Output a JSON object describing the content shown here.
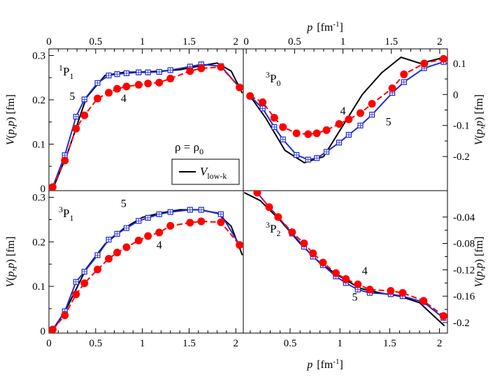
{
  "chart_data": [
    {
      "type": "line",
      "panel": "top-left",
      "label_main": "P",
      "label_sup": "1",
      "label_sub": "1",
      "xlabel": "p  [fm-1]",
      "ylabel": "V(p,p)  [fm]",
      "xlim": [
        0,
        2.08
      ],
      "ylim": [
        -0.005,
        0.315
      ],
      "yticks": [
        0,
        0.1,
        0.2,
        0.3
      ],
      "ytick_labels": [
        "0",
        "0.1",
        "0.2",
        "0.3"
      ],
      "series": [
        {
          "name": "V_low-k",
          "style": "solid-black",
          "x": [
            0.05,
            0.2,
            0.4,
            0.6,
            0.8,
            1.0,
            1.2,
            1.4,
            1.6,
            1.8,
            1.95,
            2.07
          ],
          "y": [
            0.003,
            0.08,
            0.205,
            0.255,
            0.262,
            0.263,
            0.265,
            0.268,
            0.276,
            0.283,
            0.265,
            0.215
          ]
        },
        {
          "name": "5",
          "style": "blue-square",
          "x": [
            0.04,
            0.17,
            0.29,
            0.38,
            0.52,
            0.64,
            0.73,
            0.83,
            0.96,
            1.06,
            1.18,
            1.3,
            1.51,
            1.63,
            1.84,
            2.04
          ],
          "y": [
            0.003,
            0.075,
            0.162,
            0.201,
            0.238,
            0.255,
            0.258,
            0.26,
            0.262,
            0.262,
            0.263,
            0.267,
            0.275,
            0.28,
            0.276,
            0.228
          ]
        },
        {
          "name": "4",
          "style": "red-circle",
          "x": [
            0.04,
            0.17,
            0.29,
            0.38,
            0.52,
            0.64,
            0.73,
            0.83,
            0.96,
            1.06,
            1.18,
            1.3,
            1.51,
            1.63,
            1.84,
            2.04
          ],
          "y": [
            0.003,
            0.063,
            0.135,
            0.165,
            0.203,
            0.216,
            0.225,
            0.23,
            0.234,
            0.237,
            0.239,
            0.248,
            0.265,
            0.271,
            0.274,
            0.228
          ]
        }
      ],
      "curve_labels": [
        {
          "text": "5",
          "x": 0.25,
          "y": 0.2
        },
        {
          "text": "4",
          "x": 0.8,
          "y": 0.195
        }
      ],
      "annotation": "ρ = ρ0",
      "legend_label": "Vlow-k"
    },
    {
      "type": "line",
      "panel": "top-right",
      "label_main": "P",
      "label_sup": "3",
      "label_sub": "0",
      "xlabel": "p  [fm-1]",
      "ylabel": "V(p,p)  [fm]",
      "xlim": [
        -0.03,
        2.08
      ],
      "ylim": [
        -0.31,
        0.147
      ],
      "yticks": [
        -0.2,
        -0.1,
        0,
        0.1
      ],
      "ytick_labels": [
        "-0.2",
        "-0.1",
        "0",
        "0.1"
      ],
      "series": [
        {
          "name": "V_low-k",
          "style": "solid-black",
          "x": [
            0.04,
            0.2,
            0.4,
            0.6,
            0.8,
            1.0,
            1.2,
            1.4,
            1.6,
            1.8,
            2.05
          ],
          "y": [
            -0.005,
            -0.075,
            -0.18,
            -0.22,
            -0.2,
            -0.1,
            0.0,
            0.07,
            0.12,
            0.1,
            0.12
          ]
        },
        {
          "name": "5",
          "style": "blue-square",
          "x": [
            0.04,
            0.17,
            0.29,
            0.38,
            0.52,
            0.64,
            0.73,
            0.83,
            0.96,
            1.06,
            1.18,
            1.3,
            1.51,
            1.63,
            1.84,
            2.04
          ],
          "y": [
            -0.005,
            -0.045,
            -0.105,
            -0.145,
            -0.195,
            -0.21,
            -0.205,
            -0.185,
            -0.155,
            -0.13,
            -0.1,
            -0.065,
            0.005,
            0.04,
            0.085,
            0.105
          ]
        },
        {
          "name": "4",
          "style": "red-circle",
          "x": [
            0.04,
            0.17,
            0.29,
            0.38,
            0.52,
            0.64,
            0.73,
            0.83,
            0.96,
            1.06,
            1.18,
            1.3,
            1.51,
            1.63,
            1.84,
            2.04
          ],
          "y": [
            -0.005,
            -0.025,
            -0.075,
            -0.105,
            -0.125,
            -0.128,
            -0.125,
            -0.115,
            -0.095,
            -0.08,
            -0.06,
            -0.03,
            0.02,
            0.065,
            0.1,
            0.115
          ]
        }
      ],
      "curve_labels": [
        {
          "text": "4",
          "x": 1.0,
          "y": -0.065
        },
        {
          "text": "5",
          "x": 1.47,
          "y": -0.1
        }
      ]
    },
    {
      "type": "line",
      "panel": "bottom-left",
      "label_main": "P",
      "label_sup": "3",
      "label_sub": "1",
      "xlabel": "p  [fm-1]",
      "ylabel": "V(p,p)  [fm]",
      "xlim": [
        0,
        2.08
      ],
      "ylim": [
        -0.005,
        0.315
      ],
      "yticks": [
        0,
        0.1,
        0.2,
        0.3
      ],
      "ytick_labels": [
        "0",
        "0.1",
        "0.2",
        "0.3"
      ],
      "series": [
        {
          "name": "V_low-k",
          "style": "solid-black",
          "x": [
            0.05,
            0.2,
            0.4,
            0.6,
            0.8,
            1.0,
            1.2,
            1.4,
            1.6,
            1.8,
            1.95,
            2.07
          ],
          "y": [
            0.003,
            0.055,
            0.14,
            0.195,
            0.23,
            0.255,
            0.265,
            0.272,
            0.272,
            0.265,
            0.235,
            0.17
          ]
        },
        {
          "name": "5",
          "style": "blue-square",
          "x": [
            0.04,
            0.17,
            0.29,
            0.38,
            0.52,
            0.64,
            0.73,
            0.83,
            0.96,
            1.06,
            1.18,
            1.3,
            1.51,
            1.63,
            1.84,
            2.04
          ],
          "y": [
            0.003,
            0.044,
            0.11,
            0.133,
            0.17,
            0.205,
            0.218,
            0.231,
            0.247,
            0.254,
            0.262,
            0.267,
            0.272,
            0.272,
            0.262,
            0.193
          ]
        },
        {
          "name": "4",
          "style": "red-circle",
          "x": [
            0.04,
            0.17,
            0.29,
            0.38,
            0.52,
            0.64,
            0.73,
            0.83,
            0.96,
            1.06,
            1.18,
            1.3,
            1.51,
            1.63,
            1.84,
            2.04
          ],
          "y": [
            0.003,
            0.035,
            0.082,
            0.107,
            0.138,
            0.162,
            0.176,
            0.188,
            0.203,
            0.213,
            0.221,
            0.236,
            0.243,
            0.246,
            0.244,
            0.193
          ]
        }
      ],
      "curve_labels": [
        {
          "text": "5",
          "x": 0.8,
          "y": 0.278
        },
        {
          "text": "4",
          "x": 1.18,
          "y": 0.185
        }
      ]
    },
    {
      "type": "line",
      "panel": "bottom-right",
      "label_main": "P",
      "label_sup": "3",
      "label_sub": "2",
      "xlabel": "p  [fm-1]",
      "ylabel": "V(p,p)  [fm]",
      "xlim": [
        0.03,
        2.08
      ],
      "ylim": [
        -0.216,
        0.0
      ],
      "yticks": [
        -0.2,
        -0.16,
        -0.12,
        -0.08,
        -0.04
      ],
      "ytick_labels": [
        "-0.2",
        "-0.16",
        "-0.12",
        "-0.08",
        "-0.04"
      ],
      "series": [
        {
          "name": "V_low-k",
          "style": "solid-black",
          "x": [
            0.04,
            0.2,
            0.4,
            0.6,
            0.8,
            1.0,
            1.2,
            1.4,
            1.6,
            1.8,
            2.05
          ],
          "y": [
            -0.003,
            -0.015,
            -0.045,
            -0.08,
            -0.11,
            -0.13,
            -0.148,
            -0.155,
            -0.16,
            -0.17,
            -0.205
          ]
        },
        {
          "name": "5",
          "style": "blue-square",
          "x": [
            0.17,
            0.29,
            0.38,
            0.52,
            0.64,
            0.73,
            0.83,
            0.96,
            1.06,
            1.18,
            1.3,
            1.51,
            1.63,
            1.84,
            2.04
          ],
          "y": [
            -0.003,
            -0.025,
            -0.04,
            -0.065,
            -0.085,
            -0.1,
            -0.113,
            -0.13,
            -0.14,
            -0.15,
            -0.155,
            -0.157,
            -0.16,
            -0.169,
            -0.193
          ]
        },
        {
          "name": "4",
          "style": "red-circle",
          "x": [
            0.17,
            0.29,
            0.38,
            0.52,
            0.64,
            0.73,
            0.83,
            0.96,
            1.06,
            1.18,
            1.3,
            1.51,
            1.63,
            1.84,
            2.04
          ],
          "y": [
            -0.003,
            -0.025,
            -0.04,
            -0.063,
            -0.08,
            -0.095,
            -0.109,
            -0.125,
            -0.134,
            -0.142,
            -0.15,
            -0.152,
            -0.155,
            -0.167,
            -0.19
          ]
        }
      ],
      "curve_labels": [
        {
          "text": "4",
          "x": 1.25,
          "y": -0.127
        },
        {
          "text": "5",
          "x": 1.15,
          "y": -0.167
        }
      ]
    }
  ],
  "axes": {
    "x_tick_labels": [
      "0",
      "0.5",
      "1",
      "1.5",
      "2"
    ],
    "x_tick_values": [
      0,
      0.5,
      1,
      1.5,
      2
    ],
    "xlabel_p": "p",
    "xlabel_unit": "[fm",
    "xlabel_unit_sup": "-1",
    "xlabel_close": "]",
    "ylabel_text": "V(p,p)  [fm]"
  },
  "colors": {
    "blue": "#1f2bd6",
    "red": "#ff0000",
    "black": "#000000"
  }
}
